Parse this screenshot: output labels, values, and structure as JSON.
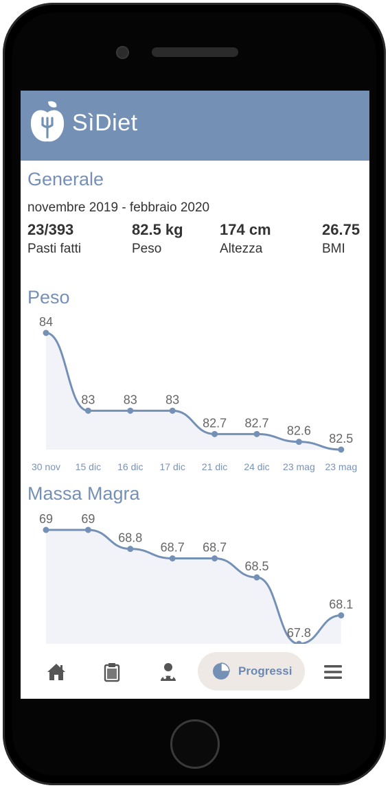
{
  "app": {
    "brand": "SìDiet",
    "brand_color": "#7490b5",
    "accent": "#7690b5"
  },
  "generale": {
    "title": "Generale",
    "period": "novembre 2019 - febbraio 2020",
    "stats": [
      {
        "value": "23/393",
        "label": "Pasti fatti"
      },
      {
        "value": "82.5 kg",
        "label": "Peso"
      },
      {
        "value": "174 cm",
        "label": "Altezza"
      },
      {
        "value": "26.75",
        "label": "BMI"
      }
    ]
  },
  "peso": {
    "title": "Peso",
    "chart_data": {
      "type": "area",
      "categories": [
        "30 nov",
        "15 dic",
        "16 dic",
        "17 dic",
        "21 dic",
        "24 dic",
        "23 mag",
        "23 mag"
      ],
      "values": [
        84,
        83,
        83,
        83,
        82.7,
        82.7,
        82.6,
        82.5
      ],
      "labels": [
        "84",
        "83",
        "83",
        "83",
        "82.7",
        "82.7",
        "82.6",
        "82.5"
      ],
      "ylim": [
        82.5,
        84
      ]
    }
  },
  "massa_magra": {
    "title": "Massa Magra",
    "chart_data": {
      "type": "area",
      "values": [
        69,
        69,
        68.8,
        68.7,
        68.7,
        68.5,
        67.8,
        68.1
      ],
      "labels": [
        "69",
        "69",
        "68.8",
        "68.7",
        "68.7",
        "68.5",
        "67.8",
        "68.1"
      ],
      "ylim": [
        67.8,
        69
      ]
    }
  },
  "nav": {
    "items": [
      {
        "icon": "home-icon"
      },
      {
        "icon": "clipboard-icon"
      },
      {
        "icon": "doctor-icon"
      },
      {
        "icon": "pie-chart-icon",
        "label": "Progressi",
        "active": true
      },
      {
        "icon": "menu-icon"
      }
    ]
  }
}
